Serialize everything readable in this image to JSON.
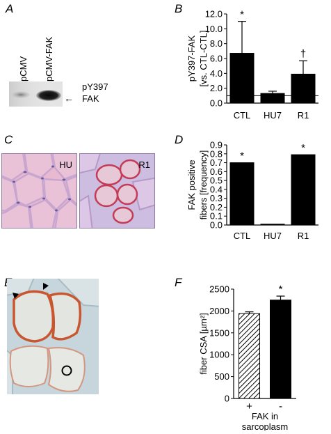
{
  "panels": {
    "A": {
      "letter": "A",
      "lane_labels": [
        "pCMV",
        "pCMV-FAK"
      ],
      "band_label_top": "pY397",
      "band_label_bottom": "FAK",
      "arrow_glyph": "←"
    },
    "B": {
      "letter": "B",
      "ylabel_line1": "pY397-FAK",
      "ylabel_line2": "[vs. CTL-CTL]"
    },
    "C": {
      "letter": "C",
      "image_labels": [
        "HU",
        "R1"
      ]
    },
    "D": {
      "letter": "D",
      "ylabel_line1": "FAK positive",
      "ylabel_line2": "fibers [frequency]"
    },
    "E": {
      "letter": "E"
    },
    "F": {
      "letter": "F",
      "ylabel": "fiber CSA [µm²]",
      "xlabel_line1": "FAK in",
      "xlabel_line2": "sarcoplasm"
    }
  },
  "chart_data": [
    {
      "id": "B",
      "type": "bar",
      "categories": [
        "CTL",
        "HU7",
        "R1"
      ],
      "values": [
        6.7,
        1.3,
        3.9
      ],
      "error_plus": [
        4.3,
        0.3,
        1.8
      ],
      "annotations": [
        "*",
        "",
        "†"
      ],
      "reference_line": 1.0,
      "yticks": [
        "0.0",
        "2.0",
        "4.0",
        "6.0",
        "8.0",
        "10.0",
        "12.0"
      ],
      "ylim": [
        0,
        12
      ],
      "bar_color": "#000000"
    },
    {
      "id": "D",
      "type": "bar",
      "categories": [
        "CTL",
        "HU7",
        "R1"
      ],
      "values": [
        0.7,
        0.01,
        0.79
      ],
      "annotations": [
        "*",
        "",
        "*"
      ],
      "yticks": [
        "0.0",
        "0.1",
        "0.2",
        "0.3",
        "0.4",
        "0.5",
        "0.6",
        "0.7",
        "0.8",
        "0.9"
      ],
      "ylim": [
        0,
        0.9
      ],
      "bar_color": "#000000"
    },
    {
      "id": "F",
      "type": "bar",
      "categories": [
        "+",
        "-"
      ],
      "values": [
        1940,
        2250
      ],
      "error_plus": [
        40,
        90
      ],
      "annotations": [
        "",
        "*"
      ],
      "bar_fills": [
        "hatched",
        "solid"
      ],
      "yticks": [
        "0",
        "500",
        "1000",
        "1500",
        "2000",
        "2500"
      ],
      "ylim": [
        0,
        2500
      ]
    }
  ]
}
